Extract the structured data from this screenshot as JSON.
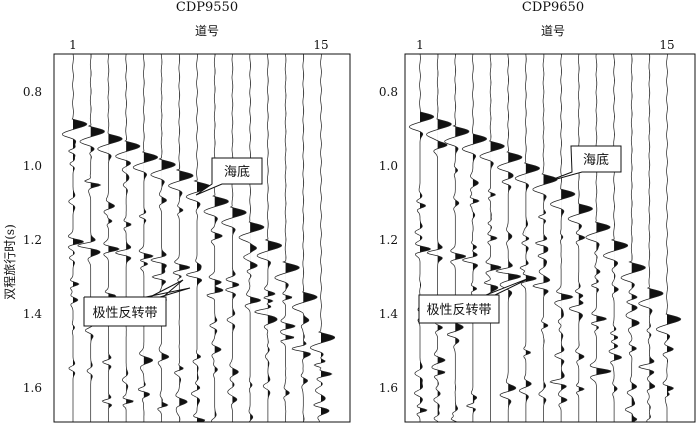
{
  "y_axis_label": "双程旅行时(s)",
  "panels": [
    {
      "title": "CDP9550",
      "x_axis_label": "道号",
      "trace_first_label": "1",
      "trace_last_label": "15",
      "annotations": {
        "seafloor": "海底",
        "polarity_reversal": "极性反转带"
      }
    },
    {
      "title": "CDP9650",
      "x_axis_label": "道号",
      "trace_first_label": "1",
      "trace_last_label": "15",
      "annotations": {
        "seafloor": "海底",
        "polarity_reversal": "极性反转带"
      }
    }
  ],
  "chart_data": [
    {
      "type": "seismic-wiggle",
      "title": "CDP9550",
      "xlabel": "道号",
      "ylabel": "双程旅行时(s)",
      "traces": [
        1,
        2,
        3,
        4,
        5,
        6,
        7,
        8,
        9,
        10,
        11,
        12,
        13,
        14,
        15
      ],
      "yticks": [
        0.8,
        1.0,
        1.2,
        1.4,
        1.6
      ],
      "ylim": [
        0.7,
        1.7
      ],
      "seafloor_time_s": [
        0.89,
        0.91,
        0.93,
        0.95,
        0.98,
        1.0,
        1.03,
        1.06,
        1.1,
        1.13,
        1.17,
        1.22,
        1.28,
        1.36,
        1.47
      ],
      "polarity_reversal_time_s": [
        1.21,
        1.22,
        1.23,
        1.24,
        1.25,
        1.26,
        1.28,
        1.3,
        1.32,
        1.34,
        1.37,
        1.4,
        1.44,
        1.5,
        1.57
      ]
    },
    {
      "type": "seismic-wiggle",
      "title": "CDP9650",
      "xlabel": "道号",
      "ylabel": "双程旅行时(s)",
      "traces": [
        1,
        2,
        3,
        4,
        5,
        6,
        7,
        8,
        9,
        10,
        11,
        12,
        13,
        14,
        15
      ],
      "yticks": [
        0.8,
        1.0,
        1.2,
        1.4,
        1.6
      ],
      "ylim": [
        0.7,
        1.7
      ],
      "seafloor_time_s": [
        0.87,
        0.89,
        0.91,
        0.93,
        0.95,
        0.98,
        1.01,
        1.04,
        1.08,
        1.12,
        1.17,
        1.22,
        1.28,
        1.35,
        1.42
      ],
      "polarity_reversal_time_s": [
        1.23,
        1.24,
        1.25,
        1.26,
        1.28,
        1.29,
        1.31,
        1.33,
        1.36,
        1.39,
        1.42,
        1.46,
        1.5,
        1.55,
        1.61
      ]
    }
  ]
}
